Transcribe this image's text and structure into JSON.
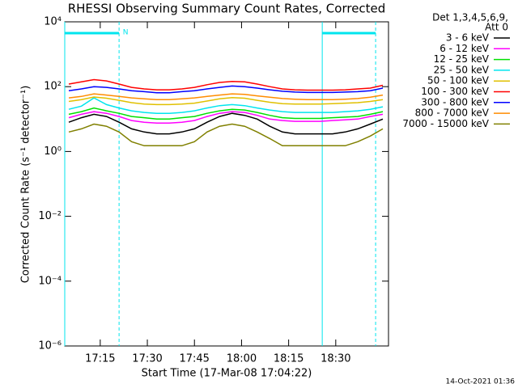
{
  "chart_data": {
    "type": "line",
    "title": "RHESSI Observing Summary Count Rates, Corrected",
    "xlabel": "Start Time (17-Mar-08 17:04:22)",
    "ylabel": "Corrected Count Rate (s⁻¹ detector⁻¹)",
    "legend_title": [
      "Det 1,3,4,5,6,9,",
      "Att 0"
    ],
    "footer": "14-Oct-2021 01:36",
    "log_y": true,
    "xlim": [
      3.7,
      106.8
    ],
    "ylim": [
      1e-06,
      10000
    ],
    "xticks": [
      {
        "value": 15,
        "label": "17:15"
      },
      {
        "value": 30,
        "label": "17:30"
      },
      {
        "value": 45,
        "label": "17:45"
      },
      {
        "value": 60,
        "label": "18:00"
      },
      {
        "value": 75,
        "label": "18:15"
      },
      {
        "value": 90,
        "label": "18:30"
      }
    ],
    "yticks": [
      {
        "value": 1e-06,
        "label": "10⁻⁶"
      },
      {
        "value": 0.0001,
        "label": "10⁻⁴"
      },
      {
        "value": 0.01,
        "label": "10⁻²"
      },
      {
        "value": 1,
        "label": "10⁰"
      },
      {
        "value": 100,
        "label": "10²"
      },
      {
        "value": 10000,
        "label": "10⁴"
      }
    ],
    "night_color": "#00e5ee",
    "night": [
      [
        3.7,
        21
      ],
      [
        85.7,
        102.7
      ]
    ],
    "flag_label": "N",
    "x": [
      5,
      9,
      13,
      17,
      21,
      25,
      29,
      33,
      37,
      41,
      45,
      49,
      53,
      57,
      61,
      65,
      69,
      73,
      77,
      81,
      85,
      89,
      93,
      97,
      101,
      105
    ],
    "series": [
      {
        "name": "3 - 6 keV",
        "color": "#000000",
        "values": [
          8,
          11,
          14,
          12,
          8,
          5,
          4,
          3.5,
          3.5,
          4,
          5,
          8,
          12,
          15,
          13,
          10,
          6,
          4,
          3.5,
          3.5,
          3.5,
          3.5,
          4,
          5,
          7,
          10
        ]
      },
      {
        "name": "6 - 12 keV",
        "color": "#ff00ff",
        "values": [
          11,
          14,
          17,
          15,
          12,
          9,
          8,
          7.5,
          7.5,
          8,
          9,
          12,
          15,
          17,
          16,
          13,
          10,
          9,
          8.5,
          8.5,
          8.5,
          9,
          9.5,
          10,
          12,
          14
        ]
      },
      {
        "name": "12 - 25 keV",
        "color": "#00e000",
        "values": [
          14,
          17,
          22,
          18,
          15,
          12,
          11,
          10,
          10,
          11,
          12,
          15,
          18,
          20,
          19,
          16,
          13,
          11,
          10.5,
          10.5,
          10.5,
          11,
          11.5,
          12,
          14,
          17
        ]
      },
      {
        "name": "25 - 50 keV",
        "color": "#00e5ee",
        "values": [
          20,
          25,
          45,
          28,
          22,
          18,
          16,
          15,
          15,
          16,
          18,
          22,
          26,
          28,
          26,
          22,
          19,
          17,
          16,
          16,
          16,
          16,
          17,
          18,
          20,
          24
        ]
      },
      {
        "name": "50 - 100 keV",
        "color": "#e0c000",
        "values": [
          35,
          40,
          48,
          44,
          38,
          32,
          29,
          28,
          28,
          29,
          31,
          36,
          42,
          46,
          44,
          38,
          33,
          30,
          29,
          29,
          29,
          30,
          31,
          32,
          35,
          40
        ]
      },
      {
        "name": "100 - 300 keV",
        "color": "#ff0000",
        "values": [
          120,
          140,
          165,
          150,
          120,
          95,
          85,
          80,
          80,
          85,
          95,
          115,
          135,
          145,
          140,
          120,
          100,
          85,
          80,
          78,
          78,
          78,
          80,
          85,
          90,
          110
        ]
      },
      {
        "name": "300 - 800 keV",
        "color": "#0000ff",
        "values": [
          75,
          85,
          100,
          95,
          85,
          75,
          70,
          65,
          65,
          70,
          75,
          85,
          95,
          105,
          100,
          90,
          80,
          72,
          68,
          66,
          66,
          66,
          68,
          70,
          75,
          90
        ]
      },
      {
        "name": "800 - 7000 keV",
        "color": "#ff8c00",
        "values": [
          45,
          50,
          60,
          55,
          50,
          45,
          42,
          40,
          40,
          42,
          45,
          50,
          55,
          60,
          58,
          52,
          47,
          43,
          41,
          40,
          40,
          40,
          41,
          43,
          47,
          55
        ]
      },
      {
        "name": "7000 - 15000 keV",
        "color": "#808000",
        "values": [
          4,
          5,
          7,
          6,
          4,
          2,
          1.5,
          1.5,
          1.5,
          1.5,
          2,
          4,
          6,
          7,
          6,
          4,
          2.5,
          1.5,
          1.5,
          1.5,
          1.5,
          1.5,
          1.5,
          2,
          3,
          5
        ]
      }
    ]
  }
}
